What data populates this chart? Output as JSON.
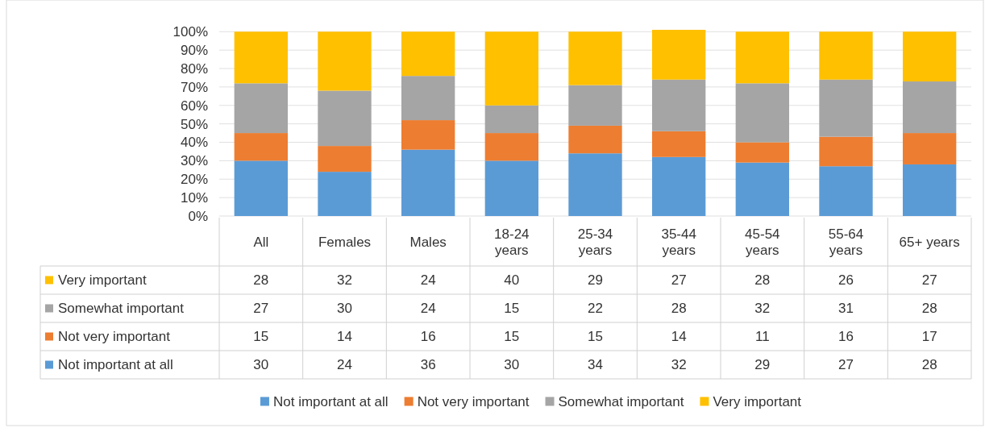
{
  "chart_data": {
    "type": "bar",
    "stacked": true,
    "categories": [
      "All",
      "Females",
      "Males",
      "18-24 years",
      "25-34 years",
      "35-44 years",
      "45-54 years",
      "55-64 years",
      "65+ years"
    ],
    "series": [
      {
        "name": "Not important at all",
        "color": "#5b9bd5",
        "values": [
          30,
          24,
          36,
          30,
          34,
          32,
          29,
          27,
          28
        ]
      },
      {
        "name": "Not very important",
        "color": "#ed7d31",
        "values": [
          15,
          14,
          16,
          15,
          15,
          14,
          11,
          16,
          17
        ]
      },
      {
        "name": "Somewhat important",
        "color": "#a5a5a5",
        "values": [
          27,
          30,
          24,
          15,
          22,
          28,
          32,
          31,
          28
        ]
      },
      {
        "name": "Very important",
        "color": "#ffc000",
        "values": [
          28,
          32,
          24,
          40,
          29,
          27,
          28,
          26,
          27
        ]
      }
    ],
    "ylim": [
      0,
      101
    ],
    "yticks": [
      {
        "value": 0,
        "label": "0%"
      },
      {
        "value": 10,
        "label": "10%"
      },
      {
        "value": 20,
        "label": "20%"
      },
      {
        "value": 30,
        "label": "30%"
      },
      {
        "value": 40,
        "label": "40%"
      },
      {
        "value": 50,
        "label": "50%"
      },
      {
        "value": 60,
        "label": "60%"
      },
      {
        "value": 70,
        "label": "70%"
      },
      {
        "value": 80,
        "label": "80%"
      },
      {
        "value": 90,
        "label": "90%"
      },
      {
        "value": 100,
        "label": "100%"
      }
    ],
    "grid": "y",
    "data_labels": true,
    "legend": "bottom"
  }
}
